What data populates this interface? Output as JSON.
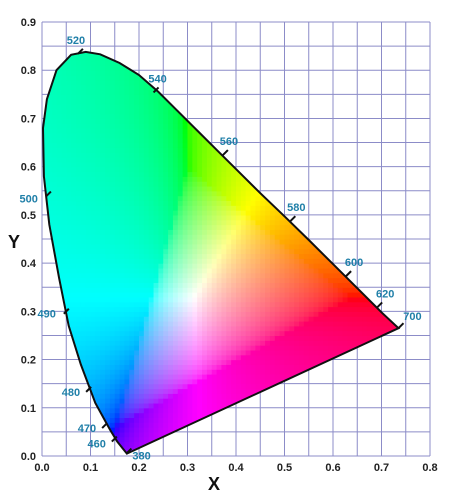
{
  "chart_data": {
    "type": "scatter",
    "xlabel": "X",
    "ylabel": "Y",
    "xlim": [
      0.0,
      0.8
    ],
    "ylim": [
      0.0,
      0.9
    ],
    "x_ticks": [
      "0.0",
      "0.1",
      "0.2",
      "0.3",
      "0.4",
      "0.5",
      "0.6",
      "0.7",
      "0.8"
    ],
    "y_ticks": [
      "0.0",
      "0.1",
      "0.2",
      "0.3",
      "0.4",
      "0.5",
      "0.6",
      "0.7",
      "0.8",
      "0.9"
    ],
    "grid": true,
    "grid_color": "#8c8cc8",
    "label_color": "#1f7fa8",
    "wavelength_labels": [
      {
        "label": "380",
        "x": 0.174,
        "y": 0.005
      },
      {
        "label": "460",
        "x": 0.144,
        "y": 0.03
      },
      {
        "label": "470",
        "x": 0.124,
        "y": 0.058
      },
      {
        "label": "480",
        "x": 0.091,
        "y": 0.133
      },
      {
        "label": "490",
        "x": 0.045,
        "y": 0.295
      },
      {
        "label": "500",
        "x": 0.008,
        "y": 0.538
      },
      {
        "label": "520",
        "x": 0.074,
        "y": 0.834
      },
      {
        "label": "540",
        "x": 0.23,
        "y": 0.754
      },
      {
        "label": "560",
        "x": 0.373,
        "y": 0.624
      },
      {
        "label": "580",
        "x": 0.512,
        "y": 0.487
      },
      {
        "label": "600",
        "x": 0.627,
        "y": 0.373
      },
      {
        "label": "620",
        "x": 0.691,
        "y": 0.308
      },
      {
        "label": "700",
        "x": 0.735,
        "y": 0.265
      }
    ]
  }
}
